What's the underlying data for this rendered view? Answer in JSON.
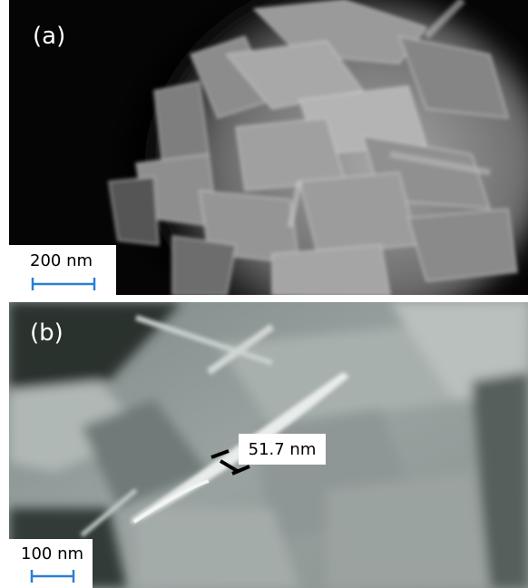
{
  "panels": [
    {
      "label": "(a)",
      "scale_bar": "200 nm"
    },
    {
      "label": "(b)",
      "scale_bar": "100 nm",
      "measurement": "51.7 nm"
    }
  ]
}
